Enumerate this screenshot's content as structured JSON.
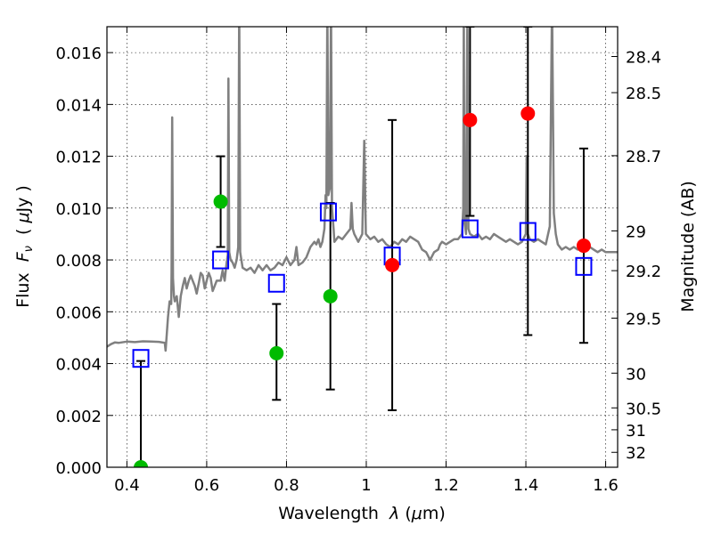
{
  "chart_data": {
    "type": "scatter",
    "title": "",
    "xlabel": "Wavelength  λ (μm)",
    "ylabel": "Flux  F_ν  ( μJy )",
    "ylabel_parts": {
      "prefix": "Flux  ",
      "var": "F",
      "sub": "ν",
      "unit_open": "  ( ",
      "mu": "μ",
      "unit": "Jy )"
    },
    "xlabel_parts": {
      "prefix": "Wavelength  ",
      "lambda": "λ",
      "unit_open": " (",
      "mu": "μ",
      "unit": "m)"
    },
    "y2label": "Magnitude (AB)",
    "xlim": [
      0.35,
      1.63
    ],
    "ylim": [
      0.0,
      0.017
    ],
    "grid": true,
    "x_ticks": [
      0.4,
      0.6,
      0.8,
      1.0,
      1.2,
      1.4,
      1.6
    ],
    "x_tick_labels": [
      "0.4",
      "0.6",
      "0.8",
      "1",
      "1.2",
      "1.4",
      "1.6"
    ],
    "y_ticks": [
      0.0,
      0.002,
      0.004,
      0.006,
      0.008,
      0.01,
      0.012,
      0.014,
      0.016
    ],
    "y_tick_labels": [
      "0.000",
      "0.002",
      "0.004",
      "0.006",
      "0.008",
      "0.010",
      "0.012",
      "0.014",
      "0.016"
    ],
    "y2_ticks": [
      28.4,
      28.5,
      28.7,
      29,
      29.2,
      29.5,
      30,
      30.5,
      31,
      32
    ],
    "y2_tick_labels": [
      "28.4",
      "28.5",
      "28.7",
      "29",
      "29.2",
      "29.5",
      "30",
      "30.5",
      "31",
      "32"
    ],
    "colors": {
      "model": "#808080",
      "detected_green": "#00bb00",
      "detected_red": "#ff0000",
      "model_points": "#0000ff",
      "errorbar": "#000000"
    },
    "series": [
      {
        "kind": "line",
        "points": [
          [
            0.35,
            0.00465
          ],
          [
            0.36,
            0.00475
          ],
          [
            0.37,
            0.00482
          ],
          [
            0.38,
            0.0048
          ],
          [
            0.4,
            0.00485
          ],
          [
            0.42,
            0.00483
          ],
          [
            0.44,
            0.00486
          ],
          [
            0.46,
            0.00485
          ],
          [
            0.48,
            0.00484
          ],
          [
            0.495,
            0.0048
          ],
          [
            0.497,
            0.0045
          ],
          [
            0.503,
            0.0058
          ],
          [
            0.507,
            0.0064
          ],
          [
            0.511,
            0.0063
          ],
          [
            0.512,
            0.0075
          ],
          [
            0.5135,
            0.0135
          ],
          [
            0.5155,
            0.0073
          ],
          [
            0.518,
            0.0066
          ],
          [
            0.52,
            0.0064
          ],
          [
            0.525,
            0.0066
          ],
          [
            0.53,
            0.0058
          ],
          [
            0.535,
            0.0066
          ],
          [
            0.54,
            0.007
          ],
          [
            0.545,
            0.0073
          ],
          [
            0.55,
            0.0069
          ],
          [
            0.555,
            0.0072
          ],
          [
            0.56,
            0.0074
          ],
          [
            0.565,
            0.0072
          ],
          [
            0.57,
            0.007
          ],
          [
            0.575,
            0.0067
          ],
          [
            0.58,
            0.0071
          ],
          [
            0.585,
            0.0075
          ],
          [
            0.59,
            0.0074
          ],
          [
            0.595,
            0.0069
          ],
          [
            0.6,
            0.0072
          ],
          [
            0.605,
            0.0075
          ],
          [
            0.61,
            0.0073
          ],
          [
            0.615,
            0.0068
          ],
          [
            0.62,
            0.007
          ],
          [
            0.625,
            0.0072
          ],
          [
            0.63,
            0.0072
          ],
          [
            0.635,
            0.0072
          ],
          [
            0.64,
            0.0076
          ],
          [
            0.645,
            0.0072
          ],
          [
            0.65,
            0.0079
          ],
          [
            0.653,
            0.0082
          ],
          [
            0.6545,
            0.015
          ],
          [
            0.6565,
            0.0083
          ],
          [
            0.66,
            0.008
          ],
          [
            0.665,
            0.0079
          ],
          [
            0.67,
            0.0077
          ],
          [
            0.675,
            0.008
          ],
          [
            0.679,
            0.0085
          ],
          [
            0.6815,
            0.018
          ],
          [
            0.684,
            0.0083
          ],
          [
            0.69,
            0.0077
          ],
          [
            0.7,
            0.0076
          ],
          [
            0.71,
            0.0077
          ],
          [
            0.72,
            0.0075
          ],
          [
            0.73,
            0.0078
          ],
          [
            0.74,
            0.0076
          ],
          [
            0.75,
            0.0078
          ],
          [
            0.76,
            0.0076
          ],
          [
            0.77,
            0.0077
          ],
          [
            0.78,
            0.0079
          ],
          [
            0.79,
            0.0078
          ],
          [
            0.8,
            0.0081
          ],
          [
            0.81,
            0.0078
          ],
          [
            0.82,
            0.008
          ],
          [
            0.825,
            0.0085
          ],
          [
            0.83,
            0.0078
          ],
          [
            0.84,
            0.0079
          ],
          [
            0.85,
            0.0081
          ],
          [
            0.86,
            0.0085
          ],
          [
            0.87,
            0.0087
          ],
          [
            0.875,
            0.0086
          ],
          [
            0.88,
            0.0088
          ],
          [
            0.885,
            0.0085
          ],
          [
            0.89,
            0.0087
          ],
          [
            0.895,
            0.0092
          ],
          [
            0.898,
            0.0105
          ],
          [
            0.9,
            0.01
          ],
          [
            0.9025,
            0.018
          ],
          [
            0.905,
            0.0105
          ],
          [
            0.909,
            0.0108
          ],
          [
            0.9115,
            0.018
          ],
          [
            0.914,
            0.01
          ],
          [
            0.918,
            0.0092
          ],
          [
            0.92,
            0.0087
          ],
          [
            0.93,
            0.0089
          ],
          [
            0.94,
            0.0088
          ],
          [
            0.95,
            0.009
          ],
          [
            0.96,
            0.0092
          ],
          [
            0.963,
            0.0102
          ],
          [
            0.966,
            0.0092
          ],
          [
            0.97,
            0.009
          ],
          [
            0.98,
            0.0087
          ],
          [
            0.99,
            0.009
          ],
          [
            0.995,
            0.0126
          ],
          [
            0.999,
            0.009
          ],
          [
            1.01,
            0.0088
          ],
          [
            1.02,
            0.0089
          ],
          [
            1.03,
            0.0087
          ],
          [
            1.04,
            0.0088
          ],
          [
            1.05,
            0.0086
          ],
          [
            1.06,
            0.0085
          ],
          [
            1.07,
            0.0087
          ],
          [
            1.08,
            0.0086
          ],
          [
            1.09,
            0.0088
          ],
          [
            1.1,
            0.0087
          ],
          [
            1.11,
            0.0089
          ],
          [
            1.12,
            0.0088
          ],
          [
            1.13,
            0.0087
          ],
          [
            1.14,
            0.0084
          ],
          [
            1.15,
            0.0083
          ],
          [
            1.16,
            0.008
          ],
          [
            1.17,
            0.0083
          ],
          [
            1.18,
            0.0084
          ],
          [
            1.185,
            0.0086
          ],
          [
            1.19,
            0.0087
          ],
          [
            1.2,
            0.0086
          ],
          [
            1.21,
            0.0087
          ],
          [
            1.22,
            0.0088
          ],
          [
            1.23,
            0.0088
          ],
          [
            1.24,
            0.009
          ],
          [
            1.243,
            0.01
          ],
          [
            1.2445,
            0.018
          ],
          [
            1.246,
            0.0095
          ],
          [
            1.25,
            0.009
          ],
          [
            1.2535,
            0.018
          ],
          [
            1.256,
            0.0092
          ],
          [
            1.26,
            0.009
          ],
          [
            1.27,
            0.0089
          ],
          [
            1.28,
            0.009
          ],
          [
            1.29,
            0.0088
          ],
          [
            1.3,
            0.0089
          ],
          [
            1.31,
            0.0088
          ],
          [
            1.32,
            0.009
          ],
          [
            1.33,
            0.0089
          ],
          [
            1.34,
            0.0088
          ],
          [
            1.35,
            0.0087
          ],
          [
            1.36,
            0.0088
          ],
          [
            1.37,
            0.0087
          ],
          [
            1.38,
            0.0086
          ],
          [
            1.39,
            0.0087
          ],
          [
            1.4,
            0.009
          ],
          [
            1.402,
            0.012
          ],
          [
            1.405,
            0.009
          ],
          [
            1.41,
            0.0088
          ],
          [
            1.42,
            0.0087
          ],
          [
            1.43,
            0.0088
          ],
          [
            1.44,
            0.0087
          ],
          [
            1.45,
            0.0086
          ],
          [
            1.46,
            0.0093
          ],
          [
            1.4655,
            0.018
          ],
          [
            1.47,
            0.0098
          ],
          [
            1.475,
            0.009
          ],
          [
            1.48,
            0.0086
          ],
          [
            1.49,
            0.0084
          ],
          [
            1.5,
            0.0085
          ],
          [
            1.51,
            0.0084
          ],
          [
            1.52,
            0.0085
          ],
          [
            1.53,
            0.0084
          ],
          [
            1.54,
            0.0086
          ],
          [
            1.55,
            0.0084
          ],
          [
            1.56,
            0.0085
          ],
          [
            1.57,
            0.0084
          ],
          [
            1.58,
            0.0083
          ],
          [
            1.59,
            0.0084
          ],
          [
            1.6,
            0.0083
          ],
          [
            1.61,
            0.0083
          ],
          [
            1.62,
            0.0083
          ],
          [
            1.63,
            0.0083
          ]
        ]
      },
      {
        "kind": "square_markers",
        "points": [
          [
            0.435,
            0.0042
          ],
          [
            0.635,
            0.008
          ],
          [
            0.775,
            0.0071
          ],
          [
            0.905,
            0.00985
          ],
          [
            1.065,
            0.00815
          ],
          [
            1.26,
            0.0092
          ],
          [
            1.405,
            0.0091
          ],
          [
            1.545,
            0.00775
          ]
        ]
      },
      {
        "kind": "filled_markers",
        "color_key": "detected_green",
        "points": [
          [
            0.435,
            0.0,
            0.0,
            0.0041
          ],
          [
            0.635,
            0.01025,
            0.0085,
            0.012
          ],
          [
            0.775,
            0.0044,
            0.0026,
            0.0063
          ],
          [
            0.91,
            0.0066,
            0.003,
            0.0102
          ]
        ]
      },
      {
        "kind": "filled_markers",
        "color_key": "detected_red",
        "points": [
          [
            1.065,
            0.0078,
            0.0022,
            0.0134
          ],
          [
            1.26,
            0.0134,
            0.0097,
            0.017
          ],
          [
            1.405,
            0.01365,
            0.0051,
            0.017
          ],
          [
            1.545,
            0.00855,
            0.0048,
            0.0123
          ]
        ]
      }
    ]
  }
}
